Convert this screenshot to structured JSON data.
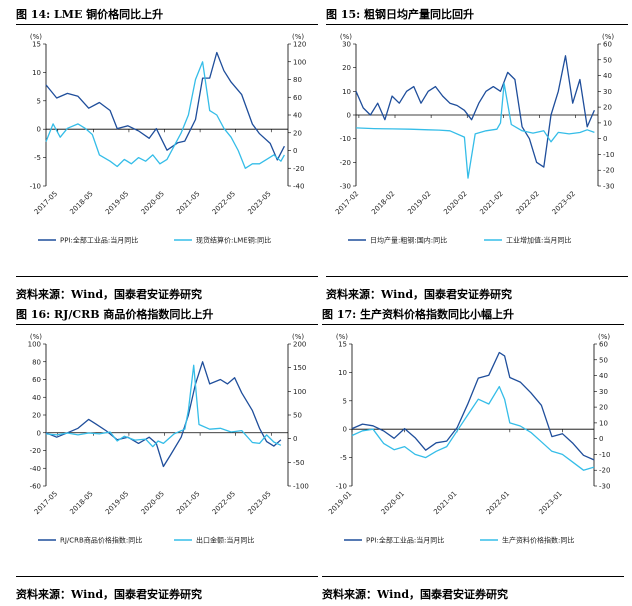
{
  "colors": {
    "dark": "#1f4e9b",
    "light": "#35bde8",
    "axis": "#000000"
  },
  "source_text": "资料来源：Wind，国泰君安证券研究",
  "chart_data": [
    {
      "id": "c1",
      "figure_title": "图 14: LME 铜价格同比上升",
      "type": "line",
      "left_unit": "(%)",
      "right_unit": "(%)",
      "left_ylim": [
        -10,
        15
      ],
      "left_ticks": [
        -10,
        -5,
        0,
        5,
        10,
        15
      ],
      "right_ylim": [
        -40,
        120
      ],
      "right_ticks": [
        -40,
        -20,
        0,
        20,
        40,
        60,
        80,
        100,
        120
      ],
      "xlim": [
        2017.0,
        2023.8
      ],
      "xticks": [
        [
          "2017-05",
          2017.33
        ],
        [
          "2018-05",
          2018.33
        ],
        [
          "2019-05",
          2019.33
        ],
        [
          "2020-05",
          2020.33
        ],
        [
          "2021-05",
          2021.33
        ],
        [
          "2022-05",
          2022.33
        ],
        [
          "2023-05",
          2023.33
        ]
      ],
      "series": [
        {
          "name": "PPI:全部工业品:当月同比",
          "axis": "left",
          "color": "#1f4e9b",
          "x": [
            2017.0,
            2017.3,
            2017.6,
            2017.9,
            2018.2,
            2018.5,
            2018.8,
            2019.0,
            2019.3,
            2019.6,
            2019.9,
            2020.1,
            2020.4,
            2020.7,
            2020.9,
            2021.2,
            2021.4,
            2021.6,
            2021.8,
            2022.0,
            2022.2,
            2022.5,
            2022.8,
            2023.0,
            2023.3,
            2023.5,
            2023.7
          ],
          "y": [
            7.8,
            5.5,
            6.3,
            5.8,
            3.7,
            4.7,
            3.3,
            0.1,
            0.6,
            -0.3,
            -1.6,
            0.1,
            -3.7,
            -2.4,
            -2.1,
            1.7,
            9.0,
            9.0,
            13.5,
            10.3,
            8.3,
            6.1,
            0.9,
            -0.8,
            -2.5,
            -5.4,
            -3.0
          ]
        },
        {
          "name": "现货结算价:LME铜:同比",
          "axis": "right",
          "color": "#35bde8",
          "x": [
            2017.0,
            2017.2,
            2017.4,
            2017.6,
            2017.9,
            2018.1,
            2018.3,
            2018.5,
            2018.8,
            2019.0,
            2019.2,
            2019.4,
            2019.6,
            2019.8,
            2020.0,
            2020.2,
            2020.4,
            2020.6,
            2020.8,
            2021.0,
            2021.2,
            2021.4,
            2021.6,
            2021.8,
            2022.0,
            2022.2,
            2022.4,
            2022.6,
            2022.8,
            2023.0,
            2023.2,
            2023.4,
            2023.6,
            2023.7
          ],
          "y": [
            10,
            30,
            15,
            25,
            30,
            25,
            18,
            -5,
            -12,
            -18,
            -10,
            -15,
            -8,
            -12,
            -5,
            -15,
            -10,
            5,
            20,
            40,
            80,
            100,
            45,
            40,
            25,
            15,
            0,
            -20,
            -15,
            -15,
            -10,
            -5,
            -12,
            -5
          ]
        }
      ]
    },
    {
      "id": "c2",
      "figure_title": "图 15: 粗钢日均产量同比回升",
      "type": "line",
      "left_unit": "(%)",
      "right_unit": "(%)",
      "left_ylim": [
        -30,
        30
      ],
      "left_ticks": [
        -30,
        -20,
        -10,
        0,
        10,
        20,
        30
      ],
      "right_ylim": [
        -30,
        60
      ],
      "right_ticks": [
        -30,
        -20,
        -10,
        0,
        10,
        20,
        30,
        40,
        50,
        60
      ],
      "xlim": [
        2017.0,
        2023.7
      ],
      "xticks": [
        [
          "2017-02",
          2017.08
        ],
        [
          "2018-02",
          2018.08
        ],
        [
          "2019-02",
          2019.08
        ],
        [
          "2020-02",
          2020.08
        ],
        [
          "2021-02",
          2021.08
        ],
        [
          "2022-02",
          2022.08
        ],
        [
          "2023-02",
          2023.08
        ]
      ],
      "series": [
        {
          "name": "日均产量:粗钢:国内:同比",
          "axis": "left",
          "color": "#1f4e9b",
          "x": [
            2017.0,
            2017.2,
            2017.4,
            2017.6,
            2017.8,
            2018.0,
            2018.2,
            2018.4,
            2018.6,
            2018.8,
            2019.0,
            2019.2,
            2019.4,
            2019.6,
            2019.8,
            2020.0,
            2020.2,
            2020.4,
            2020.6,
            2020.8,
            2021.0,
            2021.2,
            2021.4,
            2021.6,
            2021.8,
            2022.0,
            2022.2,
            2022.4,
            2022.6,
            2022.8,
            2023.0,
            2023.2,
            2023.4,
            2023.6
          ],
          "y": [
            10,
            3,
            0,
            5,
            -2,
            8,
            5,
            10,
            12,
            5,
            10,
            12,
            8,
            5,
            4,
            2,
            -2,
            5,
            10,
            12,
            10,
            18,
            15,
            -5,
            -10,
            -20,
            -22,
            0,
            10,
            25,
            5,
            15,
            -5,
            2
          ]
        },
        {
          "name": "工业增加值:当月同比",
          "axis": "right",
          "color": "#35bde8",
          "x": [
            2017.0,
            2017.5,
            2018.0,
            2018.5,
            2019.0,
            2019.3,
            2019.6,
            2020.0,
            2020.1,
            2020.3,
            2020.6,
            2020.9,
            2021.0,
            2021.1,
            2021.3,
            2021.6,
            2021.9,
            2022.2,
            2022.4,
            2022.6,
            2022.9,
            2023.2,
            2023.4,
            2023.6
          ],
          "y": [
            6.8,
            6.4,
            6.2,
            6.0,
            5.6,
            5.4,
            5.0,
            1.0,
            -25,
            3,
            5,
            6,
            10,
            35,
            9,
            5,
            3.5,
            5,
            -2,
            4,
            3,
            3.9,
            5.6,
            4
          ]
        }
      ]
    },
    {
      "id": "c3",
      "figure_title": "图 16: RJ/CRB 商品价格指数同比上升",
      "type": "line",
      "left_unit": "(%)",
      "right_unit": "(%)",
      "left_ylim": [
        -60,
        100
      ],
      "left_ticks": [
        -60,
        -40,
        -20,
        0,
        20,
        40,
        60,
        80,
        100
      ],
      "right_ylim": [
        -100,
        200
      ],
      "right_ticks": [
        -100,
        -50,
        0,
        50,
        100,
        150,
        200
      ],
      "xlim": [
        2017.0,
        2023.8
      ],
      "xticks": [
        [
          "2017-05",
          2017.33
        ],
        [
          "2018-05",
          2018.33
        ],
        [
          "2019-05",
          2019.33
        ],
        [
          "2020-05",
          2020.33
        ],
        [
          "2021-05",
          2021.33
        ],
        [
          "2022-05",
          2022.33
        ],
        [
          "2023-05",
          2023.33
        ]
      ],
      "series": [
        {
          "name": "RJ/CRB商品价格指数:同比",
          "axis": "left",
          "color": "#1f4e9b",
          "x": [
            2017.0,
            2017.3,
            2017.6,
            2017.9,
            2018.2,
            2018.4,
            2018.7,
            2019.0,
            2019.3,
            2019.6,
            2019.9,
            2020.1,
            2020.3,
            2020.5,
            2020.8,
            2021.0,
            2021.2,
            2021.4,
            2021.6,
            2021.9,
            2022.1,
            2022.3,
            2022.5,
            2022.8,
            2023.0,
            2023.2,
            2023.4,
            2023.6
          ],
          "y": [
            0,
            -5,
            0,
            5,
            15,
            10,
            2,
            -8,
            -5,
            -12,
            -5,
            -12,
            -38,
            -25,
            -5,
            20,
            55,
            80,
            55,
            60,
            55,
            62,
            45,
            25,
            5,
            -10,
            -15,
            -8
          ]
        },
        {
          "name": "出口金额:当月同比",
          "axis": "right",
          "color": "#35bde8",
          "x": [
            2017.0,
            2017.3,
            2017.6,
            2017.9,
            2018.2,
            2018.5,
            2018.8,
            2019.0,
            2019.2,
            2019.5,
            2019.8,
            2020.0,
            2020.15,
            2020.3,
            2020.6,
            2020.9,
            2021.0,
            2021.15,
            2021.3,
            2021.6,
            2021.9,
            2022.2,
            2022.5,
            2022.8,
            2023.0,
            2023.2,
            2023.4,
            2023.6
          ],
          "y": [
            10,
            8,
            12,
            8,
            12,
            10,
            14,
            -5,
            5,
            -3,
            -1,
            -17,
            -5,
            -10,
            10,
            20,
            60,
            155,
            30,
            20,
            22,
            14,
            17,
            -8,
            -10,
            8,
            -7,
            -14
          ]
        }
      ]
    },
    {
      "id": "c4",
      "figure_title": "图 17: 生产资料价格指数同比小幅上升",
      "type": "line",
      "left_unit": "(%)",
      "right_unit": "(%)",
      "left_ylim": [
        -10,
        15
      ],
      "left_ticks": [
        -10,
        -5,
        0,
        5,
        10,
        15
      ],
      "right_ylim": [
        -30,
        60
      ],
      "right_ticks": [
        -30,
        -20,
        -10,
        0,
        10,
        20,
        30,
        40,
        50,
        60
      ],
      "xlim": [
        2019.0,
        2023.6
      ],
      "xticks": [
        [
          "2019-01",
          2019.0
        ],
        [
          "2020-01",
          2020.0
        ],
        [
          "2021-01",
          2021.0
        ],
        [
          "2022-01",
          2022.0
        ],
        [
          "2023-01",
          2023.0
        ]
      ],
      "series": [
        {
          "name": "PPI:全部工业品:当月同比",
          "axis": "left",
          "color": "#1f4e9b",
          "x": [
            2019.0,
            2019.2,
            2019.4,
            2019.6,
            2019.8,
            2020.0,
            2020.2,
            2020.4,
            2020.6,
            2020.8,
            2021.0,
            2021.2,
            2021.4,
            2021.6,
            2021.8,
            2021.9,
            2022.0,
            2022.2,
            2022.4,
            2022.6,
            2022.8,
            2023.0,
            2023.2,
            2023.4,
            2023.6
          ],
          "y": [
            0.1,
            0.9,
            0.6,
            -0.3,
            -1.6,
            0.1,
            -1.5,
            -3.7,
            -2.4,
            -2.1,
            0.3,
            4.4,
            9.0,
            9.5,
            13.5,
            12.9,
            9.1,
            8.3,
            6.4,
            4.2,
            -1.3,
            -0.8,
            -2.5,
            -4.6,
            -5.4
          ]
        },
        {
          "name": "生产资料价格指数:同比",
          "axis": "right",
          "color": "#35bde8",
          "x": [
            2019.0,
            2019.2,
            2019.4,
            2019.6,
            2019.8,
            2020.0,
            2020.2,
            2020.4,
            2020.6,
            2020.8,
            2021.0,
            2021.2,
            2021.4,
            2021.6,
            2021.8,
            2021.9,
            2022.0,
            2022.2,
            2022.4,
            2022.6,
            2022.8,
            2023.0,
            2023.2,
            2023.4,
            2023.6
          ],
          "y": [
            2,
            5,
            6,
            -3,
            -7,
            -5,
            -10,
            -12,
            -8,
            -5,
            5,
            15,
            25,
            22,
            33,
            25,
            10,
            8,
            4,
            -2,
            -8,
            -10,
            -15,
            -20,
            -18
          ]
        }
      ]
    }
  ]
}
